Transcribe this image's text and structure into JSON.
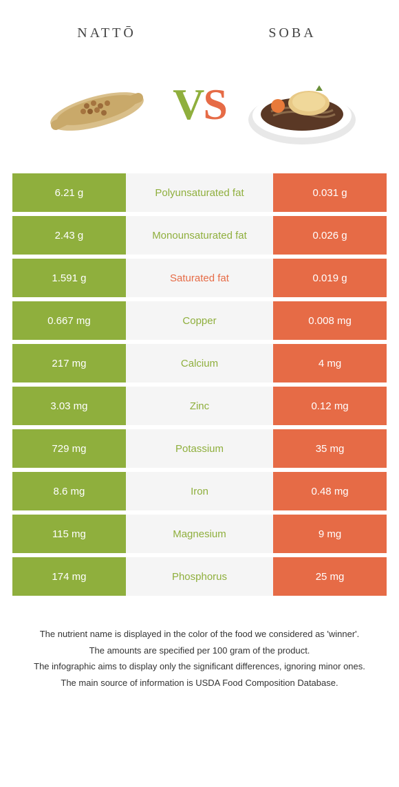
{
  "colors": {
    "left": "#8faf3d",
    "right": "#e66b46",
    "mid_bg": "#f5f5f5"
  },
  "header": {
    "left_title": "nattō",
    "right_title": "soba",
    "vs_v": "V",
    "vs_s": "S"
  },
  "rows": [
    {
      "left": "6.21 g",
      "label": "Polyunsaturated fat",
      "right": "0.031 g",
      "winner": "left"
    },
    {
      "left": "2.43 g",
      "label": "Monounsaturated fat",
      "right": "0.026 g",
      "winner": "left"
    },
    {
      "left": "1.591 g",
      "label": "Saturated fat",
      "right": "0.019 g",
      "winner": "right"
    },
    {
      "left": "0.667 mg",
      "label": "Copper",
      "right": "0.008 mg",
      "winner": "left"
    },
    {
      "left": "217 mg",
      "label": "Calcium",
      "right": "4 mg",
      "winner": "left"
    },
    {
      "left": "3.03 mg",
      "label": "Zinc",
      "right": "0.12 mg",
      "winner": "left"
    },
    {
      "left": "729 mg",
      "label": "Potassium",
      "right": "35 mg",
      "winner": "left"
    },
    {
      "left": "8.6 mg",
      "label": "Iron",
      "right": "0.48 mg",
      "winner": "left"
    },
    {
      "left": "115 mg",
      "label": "Magnesium",
      "right": "9 mg",
      "winner": "left"
    },
    {
      "left": "174 mg",
      "label": "Phosphorus",
      "right": "25 mg",
      "winner": "left"
    }
  ],
  "footnotes": [
    "The nutrient name is displayed in the color of the food we considered as 'winner'.",
    "The amounts are specified per 100 gram of the product.",
    "The infographic aims to display only the significant differences, ignoring minor ones.",
    "The main source of information is USDA Food Composition Database."
  ]
}
